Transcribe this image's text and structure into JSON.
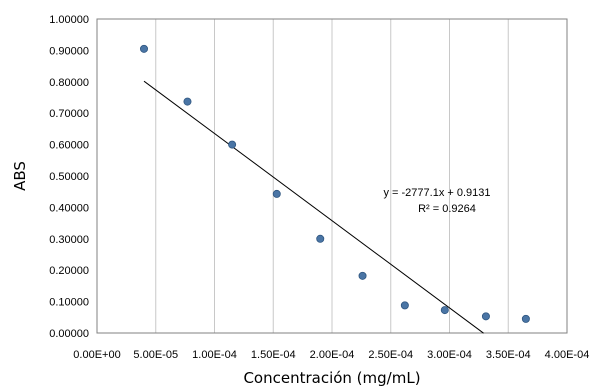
{
  "chart_data": {
    "type": "scatter",
    "xlabel": "Concentración (mg/mL)",
    "ylabel": "ABS",
    "xlim": [
      0,
      0.0004
    ],
    "ylim": [
      0,
      1.0
    ],
    "x_ticks": [
      "0.00E+00",
      "5.00E-05",
      "1.00E-04",
      "1.50E-04",
      "2.00E-04",
      "2.50E-04",
      "3.00E-04",
      "3.50E-04",
      "4.00E-04"
    ],
    "y_ticks": [
      "0.00000",
      "0.10000",
      "0.20000",
      "0.30000",
      "0.40000",
      "0.50000",
      "0.60000",
      "0.70000",
      "0.80000",
      "0.90000",
      "1.00000"
    ],
    "grid": "vertical",
    "series": [
      {
        "x": [
          4e-05,
          7.7e-05,
          0.000115,
          0.000153,
          0.00019,
          0.000226,
          0.000262,
          0.000296,
          0.000331,
          0.000365
        ],
        "y": [
          0.905,
          0.737,
          0.6,
          0.443,
          0.3,
          0.182,
          0.088,
          0.073,
          0.053,
          0.045
        ],
        "color": "#4a75a5"
      }
    ],
    "trendline": {
      "slope": -2777.1,
      "intercept": 0.9131,
      "x_range": [
        4e-05,
        0.000329
      ],
      "equation": "y = -2777.1x + 0.9131",
      "r_squared": "R² = 0.9264"
    }
  }
}
